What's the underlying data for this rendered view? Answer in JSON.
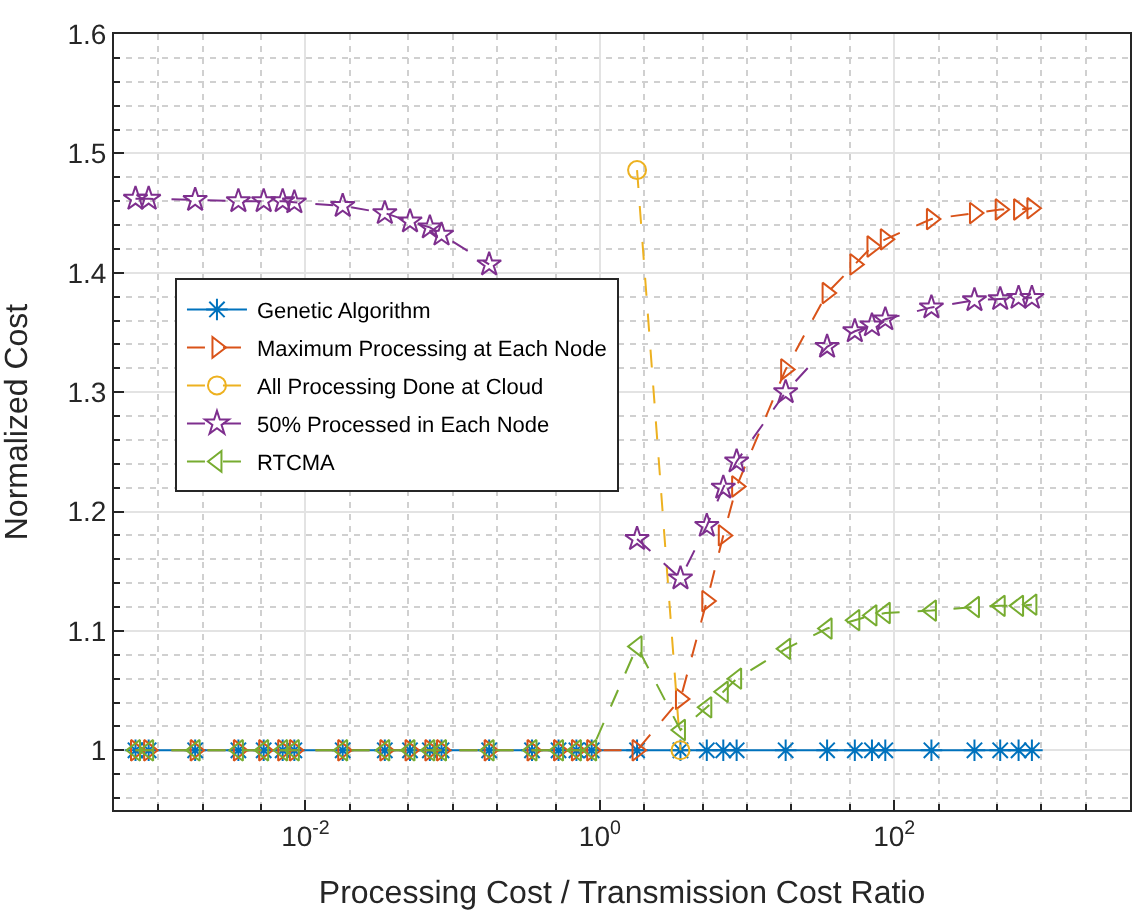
{
  "chart_data": {
    "type": "line",
    "xlabel": "Processing Cost / Transmission Cost Ratio",
    "ylabel": "Normalized Cost",
    "x": [
      0.0007,
      0.00086,
      0.00178,
      0.0035,
      0.0052,
      0.007,
      0.0084,
      0.0179,
      0.0346,
      0.0513,
      0.07,
      0.084,
      0.177,
      0.346,
      0.524,
      0.693,
      0.88,
      1.79,
      3.53,
      5.33,
      6.9,
      8.5,
      18.3,
      35,
      54,
      70.6,
      87,
      179,
      351,
      525,
      700,
      862
    ],
    "series": [
      {
        "name": "Genetic Algorithm",
        "color": "#0072bd",
        "marker": "cross",
        "line_style": "solid",
        "values": [
          1,
          1,
          1,
          1,
          1,
          1,
          1,
          1,
          1,
          1,
          1,
          1,
          1,
          1,
          1,
          1,
          1,
          1,
          1,
          1,
          1,
          1,
          1,
          1,
          1,
          1,
          1,
          1,
          1,
          1,
          1,
          1
        ]
      },
      {
        "name": "Maximum Processing at Each Node",
        "color": "#d95319",
        "marker": "triangle-right",
        "line_style": "dashed",
        "values": [
          1,
          1,
          1,
          1,
          1,
          1,
          1,
          1,
          1,
          1,
          1,
          1,
          1,
          1,
          1,
          1,
          1,
          1,
          1.043,
          1.125,
          1.18,
          1.221,
          1.319,
          1.383,
          1.407,
          1.422,
          1.428,
          1.445,
          1.45,
          1.453,
          1.453,
          1.454
        ]
      },
      {
        "name": "All Processing Done at Cloud",
        "color": "#edb120",
        "marker": "circle",
        "line_style": "dashed",
        "values": [
          null,
          null,
          null,
          null,
          null,
          null,
          null,
          null,
          null,
          null,
          null,
          null,
          null,
          null,
          null,
          null,
          null,
          1.486,
          1.0,
          null,
          null,
          null,
          null,
          null,
          null,
          null,
          null,
          null,
          null,
          null,
          null,
          null
        ]
      },
      {
        "name": "50% Processed in Each Node",
        "color": "#7e2f8e",
        "marker": "star",
        "line_style": "dashed",
        "values": [
          1.462,
          1.462,
          1.461,
          1.46,
          1.46,
          1.46,
          1.459,
          1.456,
          1.45,
          1.443,
          1.438,
          1.432,
          1.407,
          null,
          null,
          null,
          null,
          1.177,
          1.144,
          1.188,
          1.22,
          1.242,
          1.3,
          1.338,
          1.351,
          1.356,
          1.361,
          1.371,
          1.377,
          1.378,
          1.379,
          1.379
        ]
      },
      {
        "name": "RTCMA",
        "color": "#77ac30",
        "marker": "triangle-left",
        "line_style": "dashed",
        "values": [
          1,
          1,
          1,
          1,
          1,
          1,
          1,
          1,
          1,
          1,
          1,
          1,
          1,
          1,
          1,
          1,
          1,
          1.087,
          1.017,
          1.036,
          1.049,
          1.06,
          1.085,
          1.102,
          1.109,
          1.113,
          1.115,
          1.117,
          1.12,
          1.121,
          1.121,
          1.122
        ]
      }
    ],
    "log": "x",
    "xlim": [
      0.0005,
      4000
    ],
    "xticks": [
      {
        "value": 0.01,
        "label": "10$^{-2}$"
      },
      {
        "value": 1,
        "label": "10$^{0}$"
      },
      {
        "value": 100,
        "label": "10$^{2}$"
      }
    ],
    "ylim": [
      0.95,
      1.6
    ],
    "yticks": [
      1,
      1.1,
      1.2,
      1.3,
      1.4,
      1.5,
      1.6
    ],
    "grid": true,
    "legend": "left"
  }
}
